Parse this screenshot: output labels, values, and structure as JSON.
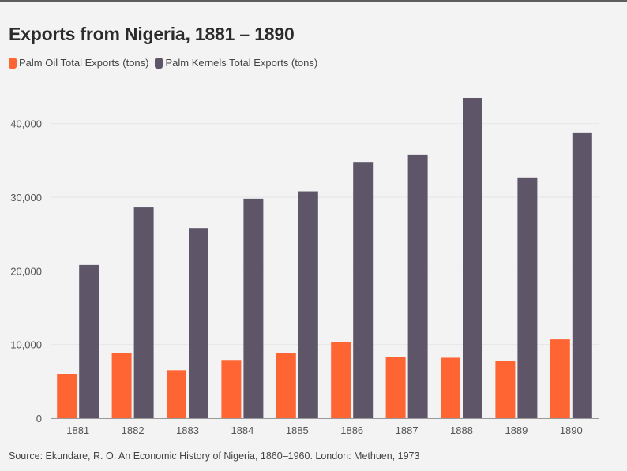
{
  "title": "Exports from Nigeria, 1881 – 1890",
  "source": "Source: Ekundare, R. O. An Economic History of Nigeria, 1860–1960. London: Methuen, 1973",
  "colors": {
    "palm_oil": "#ff6433",
    "palm_kernels": "#5f5569",
    "grid": "#e6e6e6",
    "axis": "#999999"
  },
  "chart_data": {
    "type": "bar",
    "title": "Exports from Nigeria, 1881 – 1890",
    "xlabel": "",
    "ylabel": "",
    "categories": [
      "1881",
      "1882",
      "1883",
      "1884",
      "1885",
      "1886",
      "1887",
      "1888",
      "1889",
      "1890"
    ],
    "series": [
      {
        "name": "Palm Oil Total Exports (tons)",
        "values": [
          6000,
          8800,
          6500,
          7900,
          8800,
          10300,
          8300,
          8200,
          7800,
          10700
        ]
      },
      {
        "name": "Palm Kernels Total Exports (tons)",
        "values": [
          20800,
          28600,
          25800,
          29800,
          30800,
          34800,
          35800,
          43500,
          32700,
          38800
        ]
      }
    ],
    "ylim": [
      0,
      45000
    ],
    "yticks": [
      0,
      10000,
      20000,
      30000,
      40000
    ],
    "ytick_labels": [
      "0",
      "10,000",
      "20,000",
      "30,000",
      "40,000"
    ],
    "legend_position": "top-left",
    "grid": true
  }
}
